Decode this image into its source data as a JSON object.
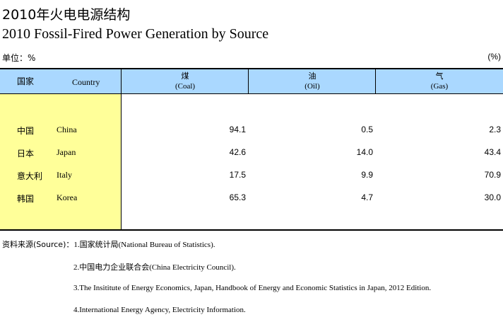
{
  "title_cn": "2010年火电电源结构",
  "title_en": "2010 Fossil-Fired Power Generation by Source",
  "unit_label": "单位：%",
  "unit_right": "(%)",
  "header": {
    "country_cn": "国家",
    "country_en": "Country",
    "coal_cn": "煤",
    "coal_en": "(Coal)",
    "oil_cn": "油",
    "oil_en": "(Oil)",
    "gas_cn": "气",
    "gas_en": "(Gas)"
  },
  "rows": [
    {
      "cn": "中国",
      "en": "China",
      "coal": "94.1",
      "oil": "0.5",
      "gas": "2.3"
    },
    {
      "cn": "日本",
      "en": "Japan",
      "coal": "42.6",
      "oil": "14.0",
      "gas": "43.4"
    },
    {
      "cn": "意大利",
      "en": "Italy",
      "coal": "17.5",
      "oil": "9.9",
      "gas": "70.9"
    },
    {
      "cn": "韩国",
      "en": "Korea",
      "coal": "65.3",
      "oil": "4.7",
      "gas": "30.0"
    }
  ],
  "sources": {
    "label": "资料来源(Source)：",
    "items": [
      "1.国家统计局(National Bureau of Statistics).",
      "2.中国电力企业联合会(China Electricity Council).",
      "3.The Insititute of Energy Economics, Japan, Handbook of Energy and Economic Statistics in Japan, 2012 Edition.",
      "4.International Energy Agency, Electricity Information."
    ]
  }
}
